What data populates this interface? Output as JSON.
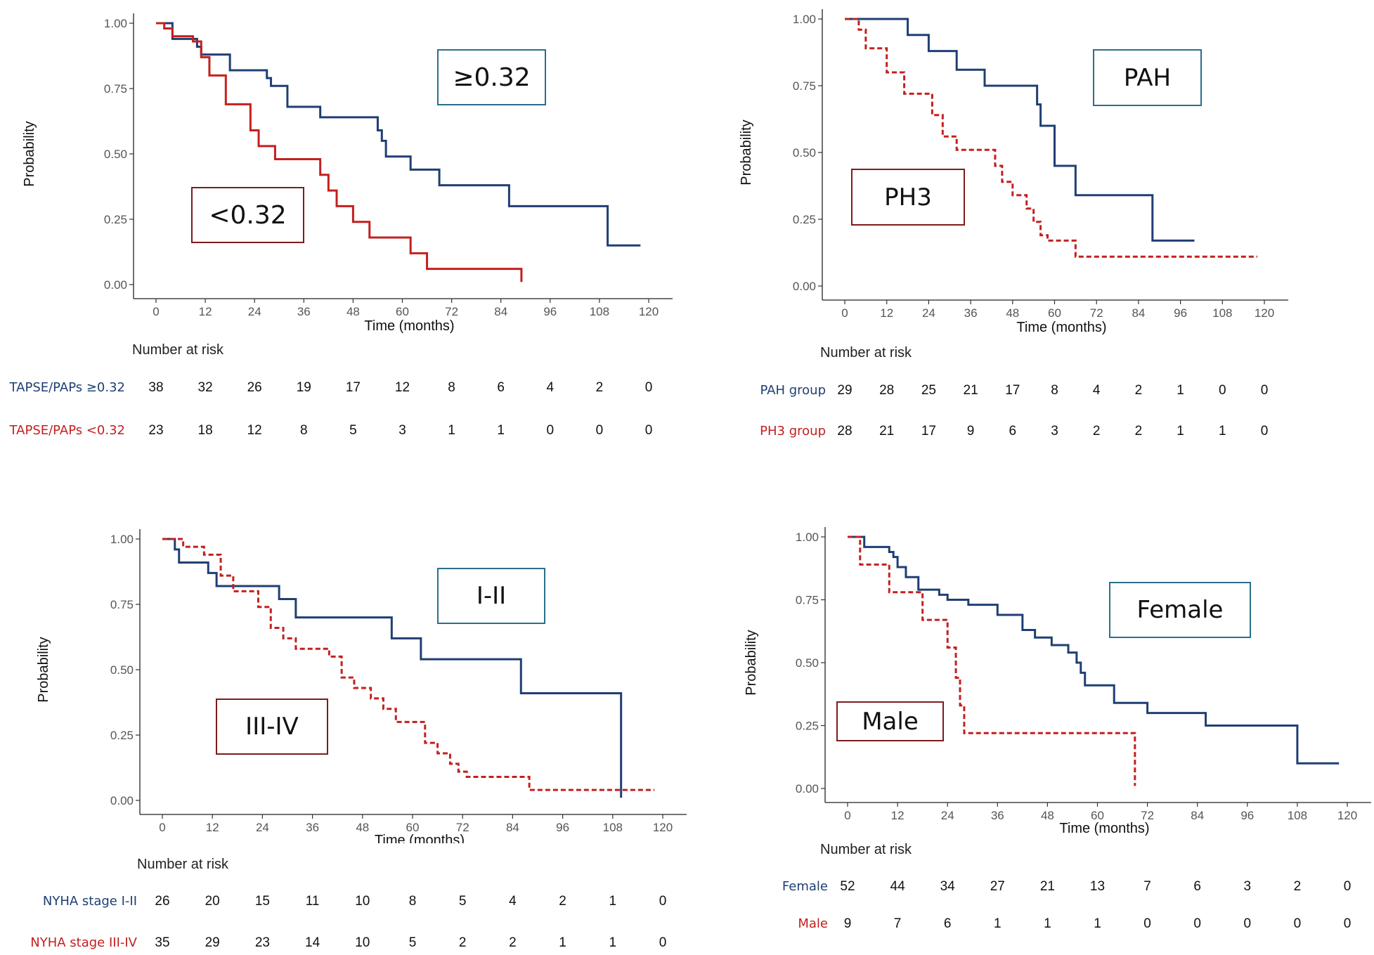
{
  "colors": {
    "blue": "#1f3f73",
    "red": "#c3201f",
    "legend_blue": "#2a6f8c",
    "legend_red": "#7b1c1c"
  },
  "chart_data": [
    {
      "type": "line",
      "step": true,
      "xlabel": "Time (months)",
      "ylabel": "Probability",
      "xlim": [
        0,
        120
      ],
      "ylim": [
        0,
        1
      ],
      "x_ticks": [
        "0",
        "12",
        "24",
        "36",
        "48",
        "60",
        "72",
        "84",
        "96",
        "108",
        "120"
      ],
      "y_ticks": [
        "0.00",
        "0.25",
        "0.50",
        "0.75",
        "1.00"
      ],
      "series": [
        {
          "name": "≥0.32",
          "color": "#1f3f73",
          "dashed": false,
          "x": [
            0,
            4,
            10,
            11,
            18,
            27,
            28,
            32,
            40,
            54,
            55,
            56,
            62,
            69,
            86,
            110,
            118
          ],
          "y": [
            1.0,
            0.94,
            0.91,
            0.88,
            0.82,
            0.79,
            0.76,
            0.68,
            0.64,
            0.59,
            0.55,
            0.49,
            0.44,
            0.38,
            0.3,
            0.15,
            0.15
          ]
        },
        {
          "name": "<0.32",
          "color": "#c3201f",
          "dashed": false,
          "x": [
            0,
            2,
            4,
            9,
            11,
            13,
            17,
            23,
            25,
            29,
            40,
            42,
            44,
            48,
            52,
            62,
            66,
            67,
            89,
            89
          ],
          "y": [
            1.0,
            0.98,
            0.95,
            0.93,
            0.87,
            0.8,
            0.69,
            0.59,
            0.53,
            0.48,
            0.42,
            0.36,
            0.3,
            0.24,
            0.18,
            0.12,
            0.06,
            0.06,
            0.06,
            0.01
          ]
        }
      ],
      "legends": [
        {
          "label": "≥0.32",
          "color": "#2a6f8c"
        },
        {
          "label": "<0.32",
          "color": "#7b1c1c"
        }
      ],
      "risk": {
        "title": "Number at risk",
        "rows": [
          {
            "label": "TAPSE/PAPs ≥0.32",
            "color": "#1f3f73",
            "values": [
              "38",
              "32",
              "26",
              "19",
              "17",
              "12",
              "8",
              "6",
              "4",
              "2",
              "0"
            ]
          },
          {
            "label": "TAPSE/PAPs <0.32",
            "color": "#c3201f",
            "values": [
              "23",
              "18",
              "12",
              "8",
              "5",
              "3",
              "1",
              "1",
              "0",
              "0",
              "0"
            ]
          }
        ]
      }
    },
    {
      "type": "line",
      "step": true,
      "xlabel": "Time (months)",
      "ylabel": "Probability",
      "xlim": [
        0,
        120
      ],
      "ylim": [
        0,
        1
      ],
      "x_ticks": [
        "0",
        "12",
        "24",
        "36",
        "48",
        "60",
        "72",
        "84",
        "96",
        "108",
        "120"
      ],
      "y_ticks": [
        "0.00",
        "0.25",
        "0.50",
        "0.75",
        "1.00"
      ],
      "series": [
        {
          "name": "PAH",
          "color": "#1f3f73",
          "dashed": false,
          "x": [
            0,
            18,
            24,
            32,
            40,
            55,
            56,
            60,
            66,
            88,
            100
          ],
          "y": [
            1.0,
            0.94,
            0.88,
            0.81,
            0.75,
            0.68,
            0.6,
            0.45,
            0.34,
            0.17,
            0.17
          ]
        },
        {
          "name": "PH3",
          "color": "#c3201f",
          "dashed": true,
          "x": [
            0,
            4,
            6,
            12,
            17,
            25,
            28,
            32,
            36,
            43,
            45,
            48,
            52,
            54,
            56,
            58,
            63,
            66,
            88,
            118
          ],
          "y": [
            1.0,
            0.96,
            0.89,
            0.8,
            0.72,
            0.64,
            0.56,
            0.51,
            0.51,
            0.45,
            0.39,
            0.34,
            0.29,
            0.24,
            0.19,
            0.17,
            0.17,
            0.11,
            0.11,
            0.11
          ]
        }
      ],
      "legends": [
        {
          "label": "PAH",
          "color": "#2a6f8c"
        },
        {
          "label": "PH3",
          "color": "#7b1c1c"
        }
      ],
      "risk": {
        "title": "Number at risk",
        "rows": [
          {
            "label": "PAH group",
            "color": "#1f3f73",
            "values": [
              "29",
              "28",
              "25",
              "21",
              "17",
              "8",
              "4",
              "2",
              "1",
              "0",
              "0"
            ]
          },
          {
            "label": "PH3 group",
            "color": "#c3201f",
            "values": [
              "28",
              "21",
              "17",
              "9",
              "6",
              "3",
              "2",
              "2",
              "1",
              "1",
              "0"
            ]
          }
        ]
      }
    },
    {
      "type": "line",
      "step": true,
      "xlabel": "Time (months)",
      "ylabel": "Probability",
      "xlim": [
        0,
        120
      ],
      "ylim": [
        0,
        1
      ],
      "x_ticks": [
        "0",
        "12",
        "24",
        "36",
        "48",
        "60",
        "72",
        "84",
        "96",
        "108",
        "120"
      ],
      "y_ticks": [
        "0.00",
        "0.25",
        "0.50",
        "0.75",
        "1.00"
      ],
      "series": [
        {
          "name": "I-II",
          "color": "#1f3f73",
          "dashed": false,
          "x": [
            0,
            3,
            4,
            11,
            13,
            28,
            32,
            55,
            62,
            86,
            110,
            110
          ],
          "y": [
            1.0,
            0.96,
            0.91,
            0.87,
            0.82,
            0.77,
            0.7,
            0.62,
            0.54,
            0.41,
            0.41,
            0.01
          ]
        },
        {
          "name": "III-IV",
          "color": "#c3201f",
          "dashed": true,
          "x": [
            0,
            5,
            10,
            14,
            17,
            23,
            26,
            29,
            32,
            40,
            43,
            46,
            50,
            53,
            56,
            63,
            66,
            69,
            71,
            73,
            88,
            118
          ],
          "y": [
            1.0,
            0.97,
            0.94,
            0.86,
            0.8,
            0.74,
            0.66,
            0.62,
            0.58,
            0.55,
            0.47,
            0.43,
            0.39,
            0.35,
            0.3,
            0.22,
            0.18,
            0.14,
            0.11,
            0.09,
            0.04,
            0.04
          ]
        }
      ],
      "legends": [
        {
          "label": "I-II",
          "color": "#2a6f8c"
        },
        {
          "label": "III-IV",
          "color": "#7b1c1c"
        }
      ],
      "risk": {
        "title": "Number at risk",
        "rows": [
          {
            "label": "NYHA stage I-II",
            "color": "#1f3f73",
            "values": [
              "26",
              "20",
              "15",
              "11",
              "10",
              "8",
              "5",
              "4",
              "2",
              "1",
              "0"
            ]
          },
          {
            "label": "NYHA stage III-IV",
            "color": "#c3201f",
            "values": [
              "35",
              "29",
              "23",
              "14",
              "10",
              "5",
              "2",
              "2",
              "1",
              "1",
              "0"
            ]
          }
        ]
      }
    },
    {
      "type": "line",
      "step": true,
      "xlabel": "Time (months)",
      "ylabel": "Probability",
      "xlim": [
        0,
        120
      ],
      "ylim": [
        0,
        1
      ],
      "x_ticks": [
        "0",
        "12",
        "24",
        "36",
        "48",
        "60",
        "72",
        "84",
        "96",
        "108",
        "120"
      ],
      "y_ticks": [
        "0.00",
        "0.25",
        "0.50",
        "0.75",
        "1.00"
      ],
      "series": [
        {
          "name": "Female",
          "color": "#1f3f73",
          "dashed": false,
          "x": [
            0,
            4,
            10,
            11,
            12,
            14,
            17,
            22,
            24,
            29,
            36,
            42,
            45,
            49,
            53,
            55,
            56,
            57,
            60,
            64,
            72,
            84,
            86,
            108,
            118
          ],
          "y": [
            1.0,
            0.96,
            0.94,
            0.92,
            0.88,
            0.84,
            0.79,
            0.77,
            0.75,
            0.73,
            0.69,
            0.63,
            0.6,
            0.57,
            0.54,
            0.5,
            0.46,
            0.41,
            0.41,
            0.34,
            0.3,
            0.3,
            0.25,
            0.1,
            0.1
          ]
        },
        {
          "name": "Male",
          "color": "#c3201f",
          "dashed": true,
          "x": [
            0,
            3,
            10,
            18,
            24,
            26,
            27,
            28,
            69,
            69
          ],
          "y": [
            1.0,
            0.89,
            0.78,
            0.67,
            0.56,
            0.44,
            0.33,
            0.22,
            0.22,
            0.01
          ]
        }
      ],
      "legends": [
        {
          "label": "Female",
          "color": "#2a6f8c"
        },
        {
          "label": "Male",
          "color": "#7b1c1c"
        }
      ],
      "risk": {
        "title": "Number at risk",
        "rows": [
          {
            "label": "Female",
            "color": "#1f3f73",
            "values": [
              "52",
              "44",
              "34",
              "27",
              "21",
              "13",
              "7",
              "6",
              "3",
              "2",
              "0"
            ]
          },
          {
            "label": "Male",
            "color": "#c3201f",
            "values": [
              "9",
              "7",
              "6",
              "1",
              "1",
              "1",
              "0",
              "0",
              "0",
              "0",
              "0"
            ]
          }
        ]
      }
    }
  ]
}
